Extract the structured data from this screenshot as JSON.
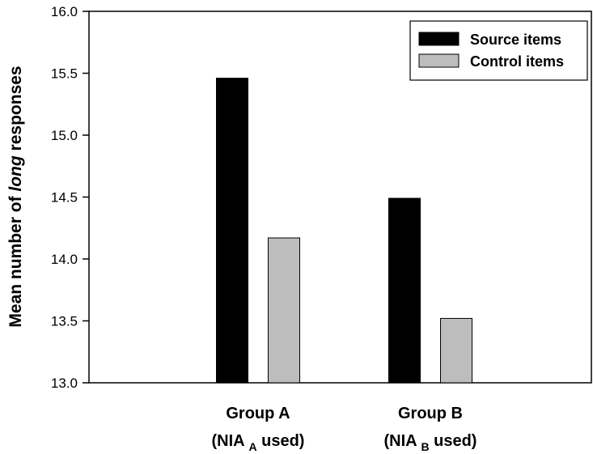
{
  "chart_data": {
    "type": "bar",
    "categories": [
      {
        "line1": "Group A",
        "line2_prefix": "(NIA",
        "line2_sub": "A",
        "line2_suffix": " used)"
      },
      {
        "line1": "Group B",
        "line2_prefix": "(NIA",
        "line2_sub": "B",
        "line2_suffix": " used)"
      }
    ],
    "series": [
      {
        "name": "Source items",
        "color": "#000000",
        "values": [
          15.46,
          14.49
        ]
      },
      {
        "name": "Control items",
        "color": "#bdbdbd",
        "values": [
          14.17,
          13.52
        ]
      }
    ],
    "ylabel": {
      "before": "Mean number of ",
      "italic": "long",
      "after": " responses"
    },
    "ylim": [
      13.0,
      16.0
    ],
    "yticks": [
      "13.0",
      "13.5",
      "14.0",
      "14.5",
      "15.0",
      "15.5",
      "16.0"
    ],
    "grid": false,
    "legend": "top-right"
  }
}
